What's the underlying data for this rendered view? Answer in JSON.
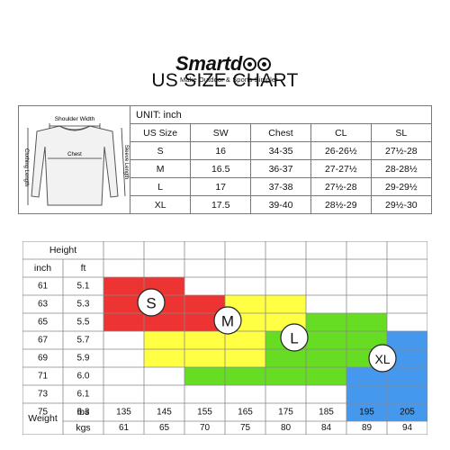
{
  "brand": {
    "name": "Smartd",
    "tagline": "Make Outdoor & Sports Simpler"
  },
  "page_title": "US SIZE CHART",
  "us_table": {
    "illustration": {
      "shoulder_label": "Shoulder Width",
      "chest_label": "Chest",
      "length_label": "Clothing Length",
      "sleeve_label": "Sleeve Length"
    },
    "unit_label": "UNIT: inch",
    "headers": [
      "US Size",
      "SW",
      "Chest",
      "CL",
      "SL"
    ],
    "rows": [
      [
        "S",
        "16",
        "34-35",
        "26-26½",
        "27½-28"
      ],
      [
        "M",
        "16.5",
        "36-37",
        "27-27½",
        "28-28½"
      ],
      [
        "L",
        "17",
        "37-38",
        "27½-28",
        "29-29½"
      ],
      [
        "XL",
        "17.5",
        "39-40",
        "28½-29",
        "29½-30"
      ]
    ]
  },
  "hw_chart": {
    "height_label": "Height",
    "inch_label": "inch",
    "ft_label": "ft",
    "weight_label": "Weight",
    "lbs_label": "lbs",
    "kgs_label": "kgs",
    "heights": [
      {
        "inch": "61",
        "ft": "5.1"
      },
      {
        "inch": "63",
        "ft": "5.3"
      },
      {
        "inch": "65",
        "ft": "5.5"
      },
      {
        "inch": "67",
        "ft": "5.7"
      },
      {
        "inch": "69",
        "ft": "5.9"
      },
      {
        "inch": "71",
        "ft": "6.0"
      },
      {
        "inch": "73",
        "ft": "6.1"
      },
      {
        "inch": "75",
        "ft": "6.3"
      }
    ],
    "lbs": [
      "135",
      "145",
      "155",
      "165",
      "175",
      "185",
      "195",
      "205"
    ],
    "kgs": [
      "61",
      "65",
      "70",
      "75",
      "80",
      "84",
      "89",
      "94"
    ],
    "zones": [
      {
        "size": "S",
        "color": "#ee3333",
        "cells": [
          [
            1,
            1
          ],
          [
            1,
            2
          ],
          [
            2,
            1
          ],
          [
            2,
            2
          ],
          [
            2,
            3
          ],
          [
            3,
            1
          ],
          [
            3,
            2
          ],
          [
            3,
            3
          ]
        ]
      },
      {
        "size": "M",
        "color": "#ffff44",
        "cells": [
          [
            2,
            4
          ],
          [
            2,
            5
          ],
          [
            3,
            4
          ],
          [
            3,
            5
          ],
          [
            3,
            6
          ],
          [
            4,
            2
          ],
          [
            4,
            3
          ],
          [
            4,
            4
          ],
          [
            4,
            5
          ],
          [
            5,
            2
          ],
          [
            5,
            3
          ],
          [
            5,
            4
          ]
        ]
      },
      {
        "size": "L",
        "color": "#66dd22",
        "cells": [
          [
            3,
            6
          ],
          [
            3,
            7
          ],
          [
            4,
            5
          ],
          [
            4,
            6
          ],
          [
            4,
            7
          ],
          [
            5,
            5
          ],
          [
            5,
            6
          ],
          [
            5,
            7
          ],
          [
            6,
            3
          ],
          [
            6,
            4
          ],
          [
            6,
            5
          ],
          [
            6,
            6
          ]
        ]
      },
      {
        "size": "XL",
        "color": "#4499ee",
        "cells": [
          [
            4,
            8
          ],
          [
            4,
            9
          ],
          [
            5,
            8
          ],
          [
            5,
            9
          ],
          [
            6,
            7
          ],
          [
            6,
            8
          ],
          [
            6,
            9
          ],
          [
            7,
            7
          ],
          [
            7,
            8
          ],
          [
            7,
            9
          ],
          [
            8,
            7
          ],
          [
            8,
            8
          ]
        ]
      }
    ]
  }
}
